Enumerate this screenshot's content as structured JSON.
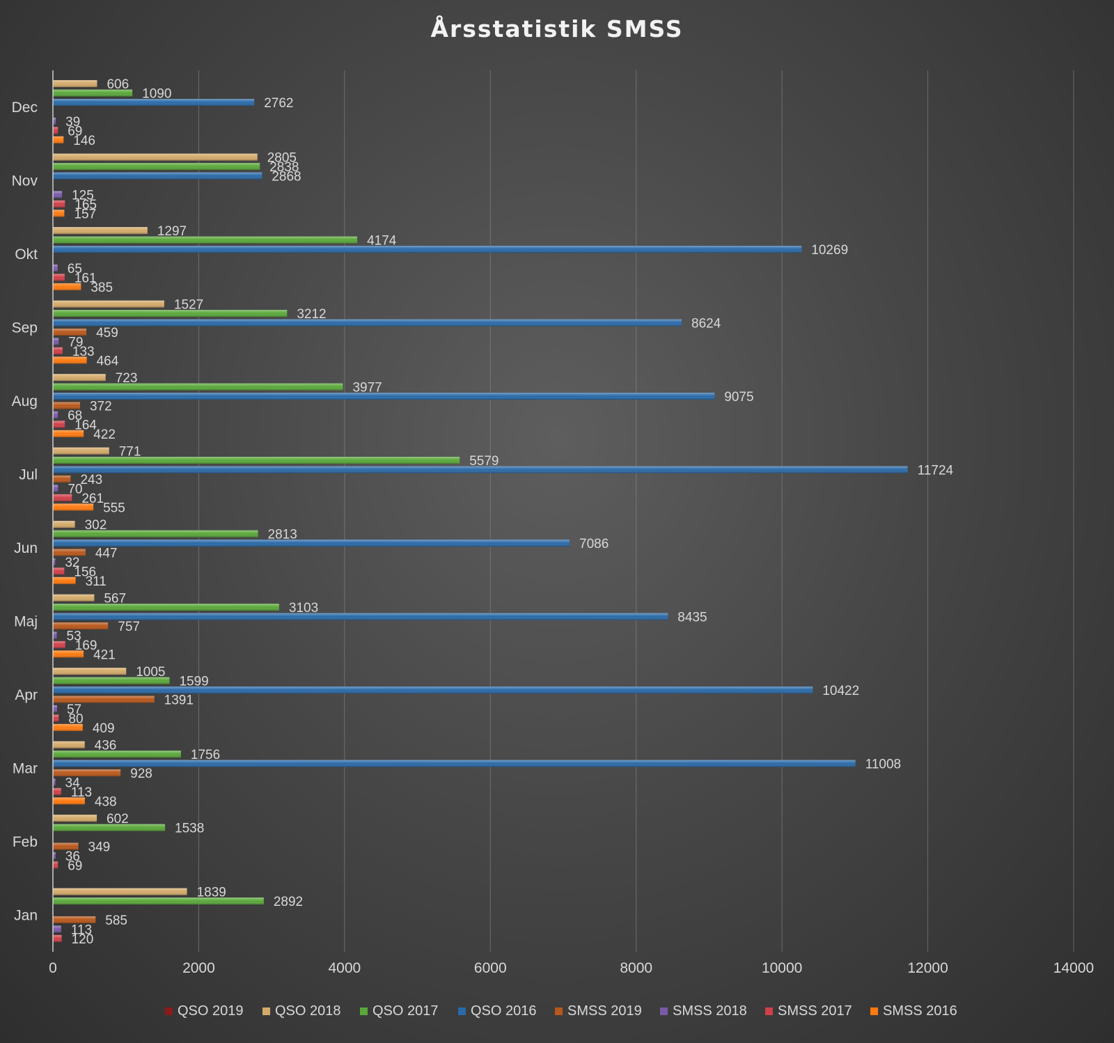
{
  "chart_data": {
    "type": "bar",
    "orientation": "horizontal",
    "title": "Årsstatistik SMSS",
    "xlabel": "",
    "ylabel": "",
    "xlim": [
      0,
      14000
    ],
    "x_ticks": [
      "0",
      "2000",
      "4000",
      "6000",
      "8000",
      "10000",
      "12000",
      "14000"
    ],
    "grid": true,
    "legend_position": "bottom",
    "categories": [
      "Jan",
      "Feb",
      "Mar",
      "Apr",
      "Maj",
      "Jun",
      "Jul",
      "Aug",
      "Sep",
      "Okt",
      "Nov",
      "Dec"
    ],
    "series": [
      {
        "name": "QSO 2019",
        "color": "#8b1a1a",
        "values": [
          null,
          null,
          null,
          null,
          null,
          null,
          null,
          null,
          null,
          null,
          null,
          null
        ]
      },
      {
        "name": "QSO 2018",
        "color": "#d4aa6a",
        "values": [
          1839,
          602,
          436,
          1005,
          567,
          302,
          771,
          723,
          1527,
          1297,
          2805,
          606
        ]
      },
      {
        "name": "QSO 2017",
        "color": "#5aa83a",
        "values": [
          2892,
          1538,
          1756,
          1599,
          3103,
          2813,
          5579,
          3977,
          3212,
          4174,
          2838,
          1090
        ]
      },
      {
        "name": "QSO 2016",
        "color": "#2a6aa8",
        "values": [
          null,
          null,
          11008,
          10422,
          8435,
          7086,
          11724,
          9075,
          8624,
          10269,
          2868,
          2762
        ]
      },
      {
        "name": "SMSS 2019",
        "color": "#b8581c",
        "values": [
          585,
          349,
          928,
          1391,
          757,
          447,
          243,
          372,
          459,
          null,
          null,
          null
        ]
      },
      {
        "name": "SMSS 2018",
        "color": "#7a5aa8",
        "values": [
          113,
          36,
          34,
          57,
          53,
          32,
          70,
          68,
          79,
          65,
          125,
          39
        ]
      },
      {
        "name": "SMSS 2017",
        "color": "#d0404a",
        "values": [
          120,
          69,
          113,
          80,
          169,
          156,
          261,
          164,
          133,
          161,
          165,
          69
        ]
      },
      {
        "name": "SMSS 2016",
        "color": "#ff7a10",
        "values": [
          null,
          null,
          438,
          409,
          421,
          311,
          555,
          422,
          464,
          385,
          157,
          146
        ]
      }
    ]
  }
}
